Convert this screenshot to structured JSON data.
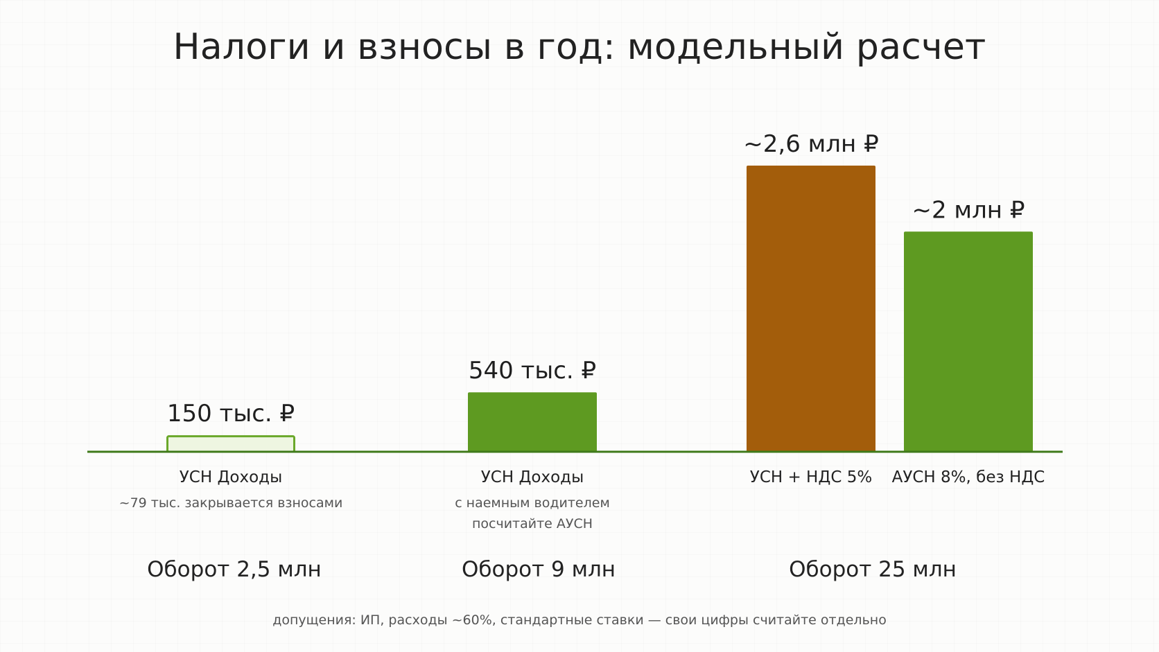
{
  "title": "Налоги и взносы в год: модельный расчет",
  "footnote": "допущения: ИП, расходы ~60%, стандартные ставки — свои цифры считайте отдельно",
  "colors": {
    "green": "#5e9a21",
    "green_light_fill": "#eef6e1",
    "green_light_stroke": "#6aa82a",
    "orange": "#a35d0b",
    "baseline": "#3f7a1a"
  },
  "chart_data": {
    "type": "bar",
    "title": "Налоги и взносы в год: модельный расчет",
    "unit": "тыс. ₽",
    "ylim": [
      0,
      2600
    ],
    "grid": false,
    "groups": [
      {
        "turnover_label": "Оборот 2,5 млн",
        "bars": [
          {
            "category": "УСН Доходы",
            "note": [
              "~79 тыс. закрывается взносами"
            ],
            "value": 150,
            "value_label": "150 тыс. ₽",
            "style": "light-green"
          }
        ]
      },
      {
        "turnover_label": "Оборот 9 млн",
        "bars": [
          {
            "category": "УСН Доходы",
            "note": [
              "с наемным водителем",
              "посчитайте АУСН"
            ],
            "value": 540,
            "value_label": "540 тыс. ₽",
            "style": "green"
          }
        ]
      },
      {
        "turnover_label": "Оборот 25 млн",
        "bars": [
          {
            "category": "УСН + НДС 5%",
            "note": [],
            "value": 2600,
            "value_label": "~2,6 млн ₽",
            "style": "orange"
          },
          {
            "category": "АУСН 8%, без НДС",
            "note": [],
            "value": 2000,
            "value_label": "~2 млн ₽",
            "style": "green"
          }
        ]
      }
    ]
  }
}
